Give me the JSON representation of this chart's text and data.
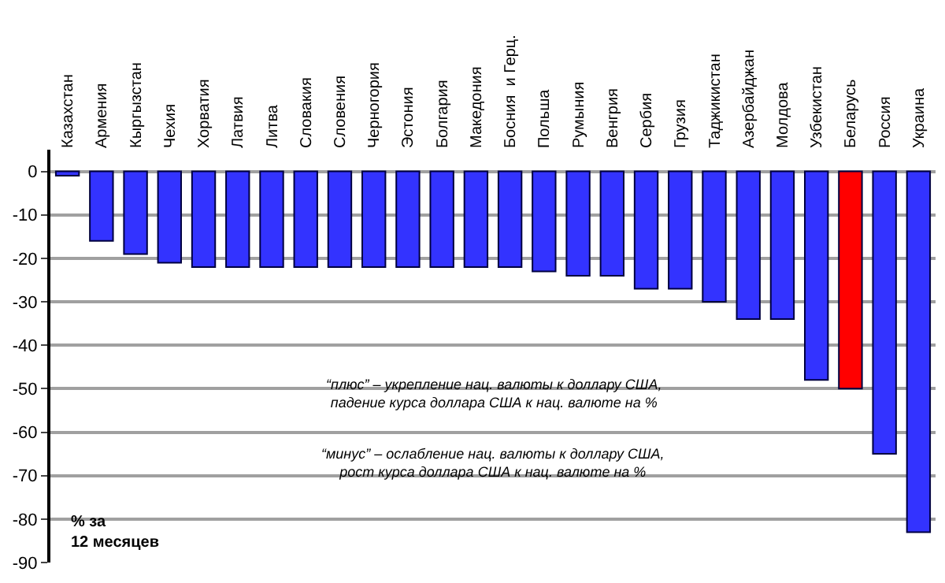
{
  "chart_data": {
    "type": "bar",
    "categories": [
      "Казахстан",
      "Армения",
      "Кыргызстан",
      "Чехия",
      "Хорватия",
      "Латвия",
      "Литва",
      "Словакия",
      "Словения",
      "Черногория",
      "Эстония",
      "Болгария",
      "Македония",
      "Босния  и Герц.",
      "Польша",
      "Румыния",
      "Венгрия",
      "Сербия",
      "Грузия",
      "Таджикистан",
      "Азербайджан",
      "Молдова",
      "Узбекистан",
      "Беларусь",
      "Россия",
      "Украина"
    ],
    "values": [
      -1,
      -16,
      -19,
      -21,
      -22,
      -22,
      -22,
      -22,
      -22,
      -22,
      -22,
      -22,
      -22,
      -22,
      -23,
      -24,
      -24,
      -27,
      -27,
      -30,
      -34,
      -34,
      -48,
      -50,
      -65,
      -83
    ],
    "colors": [
      "#3333ff",
      "#3333ff",
      "#3333ff",
      "#3333ff",
      "#3333ff",
      "#3333ff",
      "#3333ff",
      "#3333ff",
      "#3333ff",
      "#3333ff",
      "#3333ff",
      "#3333ff",
      "#3333ff",
      "#3333ff",
      "#3333ff",
      "#3333ff",
      "#3333ff",
      "#3333ff",
      "#3333ff",
      "#3333ff",
      "#3333ff",
      "#3333ff",
      "#3333ff",
      "#ff0000",
      "#3333ff",
      "#3333ff"
    ],
    "ylim": [
      -90,
      5
    ],
    "yticks": [
      0,
      -10,
      -20,
      -30,
      -40,
      -50,
      -60,
      -70,
      -80,
      -90
    ],
    "grid": "y",
    "annotations": [
      "“плюс” – укрепление нац. валюты к доллару США,\nпадение курса доллара США к нац. валюте на %",
      "“минус” – ослабление нац. валюты к доллару США,\nрост курса доллара США к нац. валюте на %",
      "% за\n12 месяцев"
    ]
  }
}
